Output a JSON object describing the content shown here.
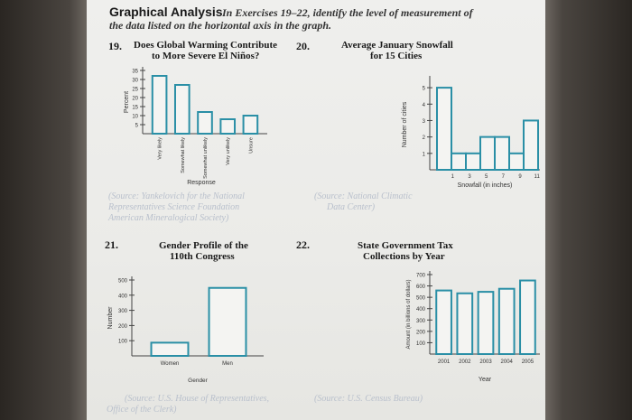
{
  "header": {
    "title": "Graphical Analysis",
    "instruction_line1": "In Exercises 19–22, identify the level of measurement of",
    "instruction_line2": "the data listed on the horizontal axis in the graph."
  },
  "exercises": [
    {
      "number": "19.",
      "title_line1": "Does Global Warming Contribute",
      "title_line2": "to More Severe El Niños?",
      "source_lines": [
        "(Source: Yankelovich for the National",
        "Representatives Science Foundation",
        "American Mineralogical Society)"
      ]
    },
    {
      "number": "20.",
      "title_line1": "Average January Snowfall",
      "title_line2": "for 15 Cities",
      "source_lines": [
        "(Source: National Climatic",
        "Data Center)"
      ]
    },
    {
      "number": "21.",
      "title_line1": "Gender Profile of the",
      "title_line2": "110th Congress",
      "source_lines": [
        "(Source: U.S. House of Representatives,",
        "Office of the Clerk)"
      ]
    },
    {
      "number": "22.",
      "title_line1": "State Government Tax",
      "title_line2": "Collections by Year",
      "source_lines": [
        "(Source: U.S. Census Bureau)"
      ]
    }
  ],
  "chart_data": [
    {
      "type": "bar",
      "title": "Does Global Warming Contribute to More Severe El Niños?",
      "categories": [
        "Very likely",
        "Somewhat likely",
        "Somewhat unlikely",
        "Very unlikely",
        "Unsure"
      ],
      "values": [
        32,
        27,
        12,
        8,
        10
      ],
      "xlabel": "Response",
      "ylabel": "Percent",
      "yticks": [
        "35",
        "30",
        "25",
        "20",
        "15",
        "10",
        "5"
      ],
      "ylim": [
        0,
        35
      ]
    },
    {
      "type": "histogram",
      "title": "Average January Snowfall for 15 Cities",
      "x": [
        0,
        2,
        4,
        6,
        8,
        10,
        12
      ],
      "values": [
        5,
        1,
        1,
        2,
        2,
        1,
        3
      ],
      "xlabel": "Snowfall (in inches)",
      "ylabel": "Number of cities",
      "xticks": [
        "1",
        "3",
        "5",
        "7",
        "9",
        "11"
      ],
      "yticks": [
        "1",
        "2",
        "3",
        "4",
        "5"
      ],
      "ylim": [
        0,
        5.5
      ]
    },
    {
      "type": "bar",
      "title": "Gender Profile of the 110th Congress",
      "categories": [
        "Women",
        "Men"
      ],
      "values": [
        87,
        448
      ],
      "xlabel": "Gender",
      "ylabel": "Number",
      "yticks": [
        "500",
        "400",
        "300",
        "200",
        "100"
      ],
      "ylim": [
        0,
        500
      ]
    },
    {
      "type": "bar",
      "title": "State Government Tax Collections by Year",
      "categories": [
        "2001",
        "2002",
        "2003",
        "2004",
        "2005"
      ],
      "values": [
        560,
        535,
        548,
        575,
        648
      ],
      "xlabel": "Year",
      "ylabel": "Amount (in billions of dollars)",
      "yticks": [
        "700",
        "600",
        "500",
        "400",
        "300",
        "200",
        "100"
      ],
      "ylim": [
        0,
        700
      ]
    }
  ]
}
